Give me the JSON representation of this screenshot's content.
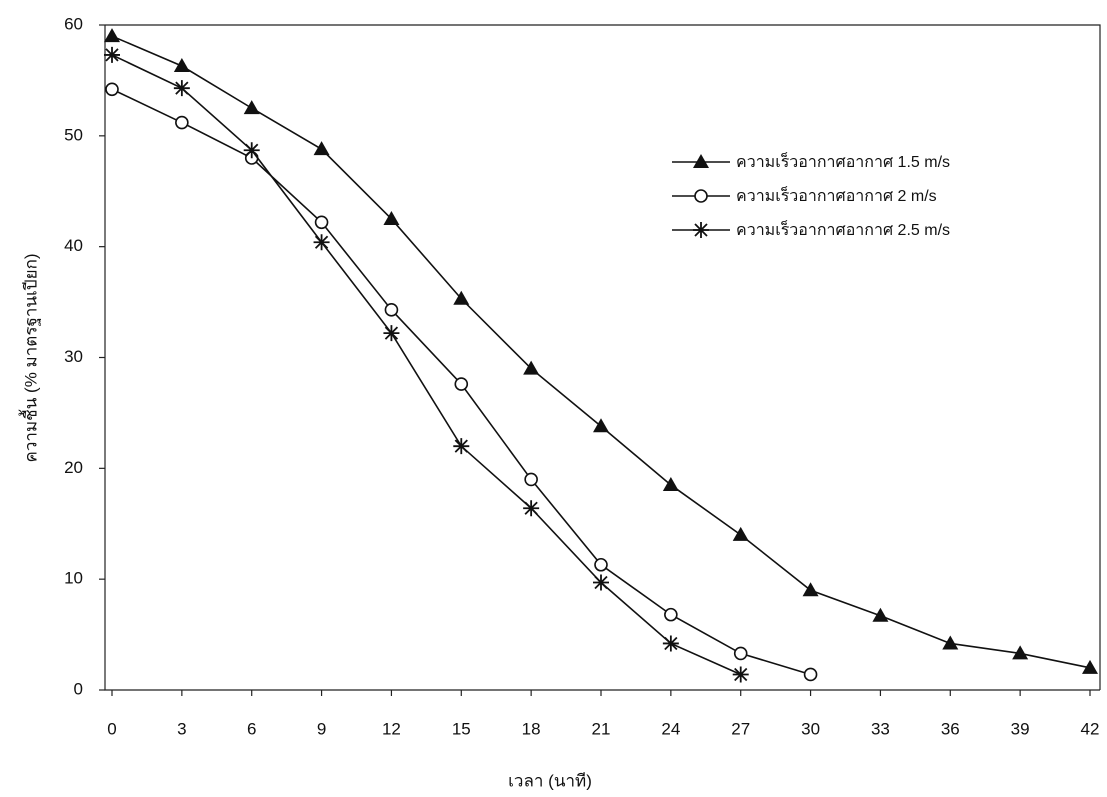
{
  "chart_data": {
    "type": "line",
    "x_label": "เวลา (นาที)",
    "y_label": "ความชื้น (% มาตรฐานเปียก)",
    "x": [
      0,
      3,
      6,
      9,
      12,
      15,
      18,
      21,
      24,
      27,
      30,
      33,
      36,
      39,
      42
    ],
    "xlim": [
      0,
      42
    ],
    "xticks": [
      0,
      3,
      6,
      9,
      12,
      15,
      18,
      21,
      24,
      27,
      30,
      33,
      36,
      39,
      42
    ],
    "ylim": [
      0,
      60
    ],
    "yticks": [
      0,
      10,
      20,
      30,
      40,
      50,
      60
    ],
    "grid": false,
    "legend": "upper right",
    "series": [
      {
        "name": "ความเร็วอากาศอากาศ  1.5 m/s",
        "color": "#111111",
        "marker": "triangle",
        "values": [
          59,
          56.3,
          52.5,
          48.8,
          42.5,
          35.3,
          29,
          23.8,
          18.5,
          14,
          9,
          6.7,
          4.2,
          3.3,
          2
        ]
      },
      {
        "name": "ความเร็วอากาศอากาศ  2 m/s",
        "color": "#111111",
        "marker": "circle",
        "values": [
          54.2,
          51.2,
          48,
          42.2,
          34.3,
          27.6,
          19,
          11.3,
          6.8,
          3.3,
          1.4,
          null,
          null,
          null,
          null
        ]
      },
      {
        "name": "ความเร็วอากาศอากาศ  2.5 m/s",
        "color": "#111111",
        "marker": "star",
        "values": [
          57.3,
          54.3,
          48.7,
          40.4,
          32.2,
          22,
          16.4,
          9.7,
          4.2,
          1.4,
          null,
          null,
          null,
          null,
          null
        ]
      }
    ]
  }
}
